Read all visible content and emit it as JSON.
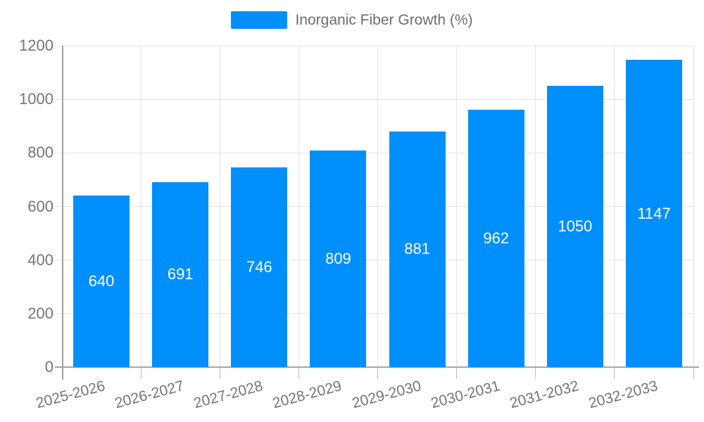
{
  "legend": {
    "label": "Inorganic Fiber Growth (%)"
  },
  "chart_data": {
    "type": "bar",
    "title": "",
    "series_name": "Inorganic Fiber Growth (%)",
    "categories": [
      "2025-2026",
      "2026-2027",
      "2027-2028",
      "2028-2029",
      "2029-2030",
      "2030-2031",
      "2031-2032",
      "2032-2033"
    ],
    "values": [
      640,
      691,
      746,
      809,
      881,
      962,
      1050,
      1147
    ],
    "value_labels": [
      "640",
      "691",
      "746",
      "809",
      "881",
      "962",
      "1050",
      "1147"
    ],
    "xlabel": "",
    "ylabel": "",
    "ylim": [
      0,
      1200
    ],
    "yticks": [
      0,
      200,
      400,
      600,
      800,
      1000,
      1200
    ],
    "grid": true,
    "legend_position": "top",
    "bar_color": "#008FFB",
    "bar_label_color": "#ffffff",
    "axis_text_color": "#757575",
    "grid_color": "#e4e4e4"
  }
}
